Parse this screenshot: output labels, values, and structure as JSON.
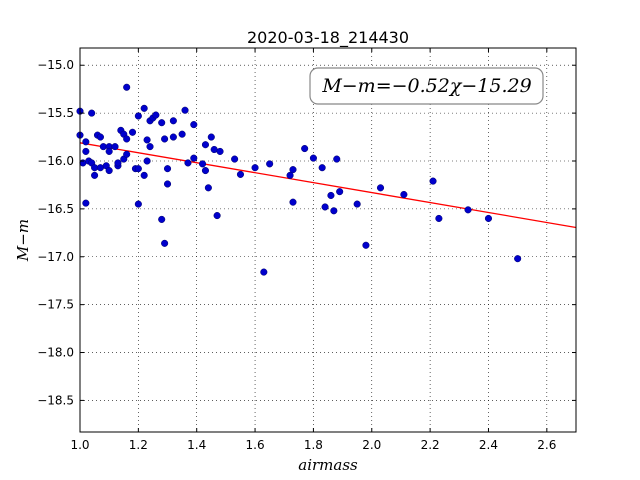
{
  "chart_data": {
    "type": "scatter",
    "title": "2020-03-18_214430",
    "xlabel": "airmass",
    "ylabel": "M−m",
    "xlim": [
      1.0,
      2.7
    ],
    "ylim": [
      -18.83,
      -14.82
    ],
    "y_inverted": true,
    "grid": true,
    "x_ticks": [
      1.0,
      1.2,
      1.4,
      1.6,
      1.8,
      2.0,
      2.2,
      2.4,
      2.6
    ],
    "x_tick_labels": [
      "1.0",
      "1.2",
      "1.4",
      "1.6",
      "1.8",
      "2.0",
      "2.2",
      "2.4",
      "2.6"
    ],
    "y_ticks": [
      -15.0,
      -15.5,
      -16.0,
      -16.5,
      -17.0,
      -17.5,
      -18.0,
      -18.5
    ],
    "y_tick_labels": [
      "−15.0",
      "−15.5",
      "−16.0",
      "−16.5",
      "−17.0",
      "−17.5",
      "−18.0",
      "−18.5"
    ],
    "annotation": "M−m=−0.52χ−15.29",
    "fit": {
      "slope": -0.52,
      "intercept": -15.29,
      "color": "#ff0000"
    },
    "point_color": "#0000cc",
    "points": [
      [
        1.0,
        -15.48
      ],
      [
        1.0,
        -15.73
      ],
      [
        1.01,
        -16.02
      ],
      [
        1.02,
        -15.8
      ],
      [
        1.02,
        -15.9
      ],
      [
        1.02,
        -16.44
      ],
      [
        1.03,
        -16.0
      ],
      [
        1.04,
        -15.5
      ],
      [
        1.04,
        -16.02
      ],
      [
        1.05,
        -16.15
      ],
      [
        1.05,
        -16.07
      ],
      [
        1.06,
        -15.73
      ],
      [
        1.07,
        -16.07
      ],
      [
        1.07,
        -15.75
      ],
      [
        1.08,
        -15.85
      ],
      [
        1.09,
        -16.05
      ],
      [
        1.1,
        -15.85
      ],
      [
        1.1,
        -16.1
      ],
      [
        1.1,
        -15.9
      ],
      [
        1.12,
        -15.85
      ],
      [
        1.13,
        -16.05
      ],
      [
        1.13,
        -16.02
      ],
      [
        1.14,
        -15.68
      ],
      [
        1.15,
        -15.72
      ],
      [
        1.15,
        -15.98
      ],
      [
        1.16,
        -15.23
      ],
      [
        1.16,
        -15.77
      ],
      [
        1.16,
        -15.93
      ],
      [
        1.18,
        -15.7
      ],
      [
        1.19,
        -16.08
      ],
      [
        1.2,
        -16.08
      ],
      [
        1.2,
        -15.53
      ],
      [
        1.2,
        -16.45
      ],
      [
        1.22,
        -15.45
      ],
      [
        1.22,
        -16.15
      ],
      [
        1.23,
        -15.78
      ],
      [
        1.23,
        -16.0
      ],
      [
        1.24,
        -15.85
      ],
      [
        1.24,
        -15.58
      ],
      [
        1.25,
        -15.55
      ],
      [
        1.26,
        -15.52
      ],
      [
        1.28,
        -15.6
      ],
      [
        1.28,
        -16.61
      ],
      [
        1.29,
        -16.86
      ],
      [
        1.29,
        -15.77
      ],
      [
        1.3,
        -16.08
      ],
      [
        1.3,
        -16.24
      ],
      [
        1.32,
        -15.58
      ],
      [
        1.32,
        -15.75
      ],
      [
        1.35,
        -15.72
      ],
      [
        1.36,
        -15.47
      ],
      [
        1.37,
        -16.02
      ],
      [
        1.39,
        -15.62
      ],
      [
        1.39,
        -15.97
      ],
      [
        1.42,
        -16.03
      ],
      [
        1.43,
        -16.1
      ],
      [
        1.43,
        -15.83
      ],
      [
        1.44,
        -16.28
      ],
      [
        1.45,
        -15.75
      ],
      [
        1.46,
        -15.88
      ],
      [
        1.47,
        -16.57
      ],
      [
        1.48,
        -15.9
      ],
      [
        1.53,
        -15.98
      ],
      [
        1.55,
        -16.14
      ],
      [
        1.6,
        -16.07
      ],
      [
        1.63,
        -17.16
      ],
      [
        1.65,
        -16.03
      ],
      [
        1.72,
        -16.15
      ],
      [
        1.73,
        -16.09
      ],
      [
        1.73,
        -16.43
      ],
      [
        1.77,
        -15.87
      ],
      [
        1.8,
        -15.97
      ],
      [
        1.83,
        -16.07
      ],
      [
        1.84,
        -16.48
      ],
      [
        1.86,
        -16.36
      ],
      [
        1.87,
        -16.52
      ],
      [
        1.88,
        -15.98
      ],
      [
        1.89,
        -16.32
      ],
      [
        1.95,
        -16.45
      ],
      [
        1.98,
        -16.88
      ],
      [
        2.03,
        -16.28
      ],
      [
        2.11,
        -16.35
      ],
      [
        2.21,
        -16.21
      ],
      [
        2.23,
        -16.6
      ],
      [
        2.33,
        -16.51
      ],
      [
        2.4,
        -16.6
      ],
      [
        2.5,
        -17.02
      ]
    ]
  }
}
